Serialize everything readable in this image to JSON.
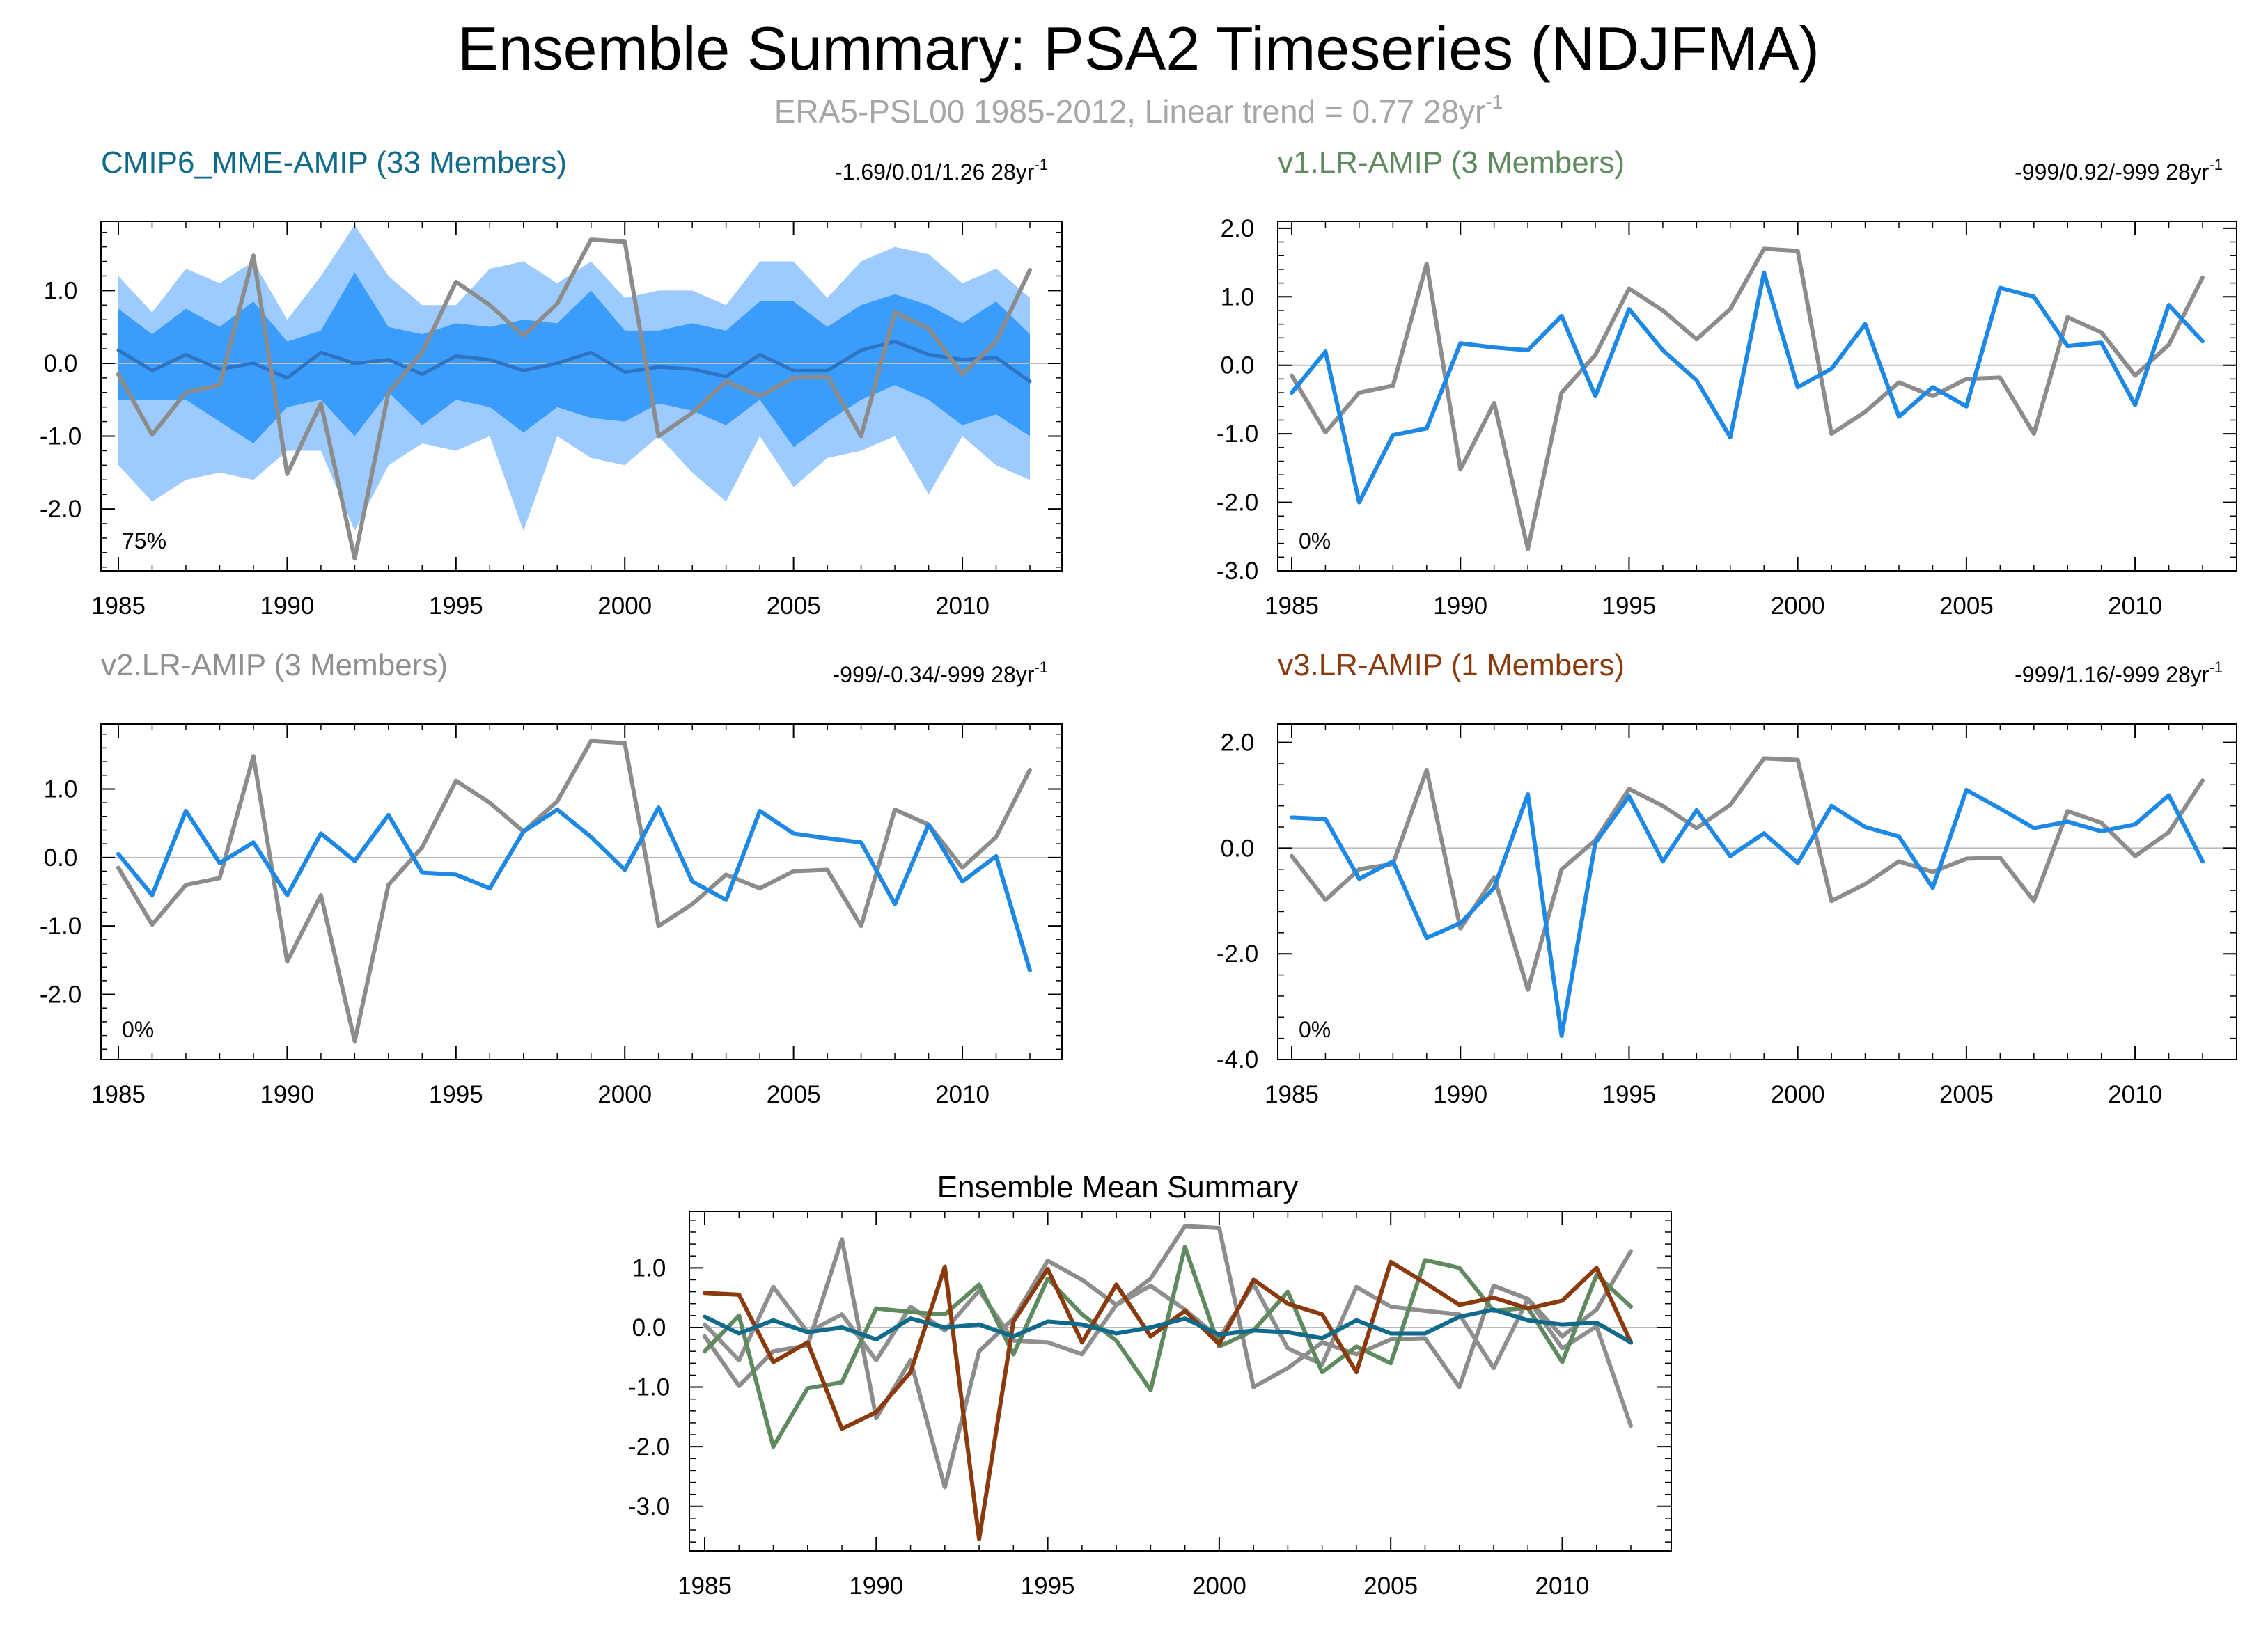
{
  "figure": {
    "title": "Ensemble Summary: PSA2 Timeseries (NDJFMA)",
    "subtitle": "ERA5-PSL00 1985-2012, Linear trend = 0.77 28yr",
    "subtitle_sup": "-1"
  },
  "colors": {
    "observed": "#8c8c8c",
    "model": "#1e88e5",
    "band_outer": "#9dcbff",
    "band_inner": "#3a9dfc",
    "mme_mean": "#2f74c3",
    "cmip6": "#0f6a8b",
    "v1": "#5f8a5f",
    "v2": "#8f8f8f",
    "v3": "#8b3a0e",
    "axis": "#000000",
    "zero_line": "#bdbdbd"
  },
  "chart_data": [
    {
      "id": "mme",
      "type": "area",
      "title": "CMIP6_MME-AMIP (33 Members)",
      "title_color": "#0f6a8b",
      "stat": "-1.69/0.01/1.26 28yr",
      "stat_sup": "-1",
      "annotation": "75%",
      "x": [
        1985,
        1986,
        1987,
        1988,
        1989,
        1990,
        1991,
        1992,
        1993,
        1994,
        1995,
        1996,
        1997,
        1998,
        1999,
        2000,
        2001,
        2002,
        2003,
        2004,
        2005,
        2006,
        2007,
        2008,
        2009,
        2010,
        2011,
        2012
      ],
      "xlim": [
        1985,
        2012
      ],
      "ylim": [
        -2.85,
        1.95
      ],
      "yticks": [
        1.0,
        0.0,
        -1.0,
        -2.0
      ],
      "ytick_labels": [
        "1.0",
        "0.0",
        "-1.0",
        "-2.0"
      ],
      "xticks": [
        1985,
        1990,
        1995,
        2000,
        2005,
        2010
      ],
      "xtick_labels": [
        "1985",
        "1990",
        "1995",
        "2000",
        "2005",
        "2010"
      ],
      "band_outer_upper": [
        1.2,
        0.7,
        1.3,
        1.1,
        1.4,
        0.6,
        1.2,
        1.9,
        1.2,
        0.8,
        0.8,
        1.3,
        1.4,
        1.1,
        1.4,
        0.9,
        1.0,
        1.0,
        0.8,
        1.4,
        1.4,
        0.9,
        1.4,
        1.6,
        1.5,
        1.1,
        1.3,
        0.9
      ],
      "band_outer_lower": [
        -1.4,
        -1.9,
        -1.6,
        -1.5,
        -1.6,
        -1.2,
        -1.2,
        -2.3,
        -1.4,
        -1.1,
        -1.2,
        -1.0,
        -2.3,
        -1.0,
        -1.3,
        -1.4,
        -1.0,
        -1.5,
        -1.9,
        -1.0,
        -1.7,
        -1.3,
        -1.2,
        -1.0,
        -1.8,
        -1.0,
        -1.4,
        -1.6
      ],
      "band_inner_upper": [
        0.75,
        0.4,
        0.75,
        0.5,
        0.85,
        0.3,
        0.45,
        1.25,
        0.5,
        0.4,
        0.55,
        0.5,
        0.6,
        0.55,
        1.0,
        0.45,
        0.45,
        0.55,
        0.45,
        0.85,
        0.85,
        0.5,
        0.8,
        0.95,
        0.8,
        0.55,
        0.85,
        0.4
      ],
      "band_inner_lower": [
        -0.5,
        -0.5,
        -0.5,
        -0.8,
        -1.1,
        -0.6,
        -0.5,
        -1.0,
        -0.4,
        -0.85,
        -0.5,
        -0.6,
        -0.95,
        -0.6,
        -0.75,
        -0.8,
        -0.55,
        -0.65,
        -0.85,
        -0.5,
        -1.15,
        -0.8,
        -0.5,
        -0.3,
        -0.5,
        -0.85,
        -0.7,
        -1.0
      ],
      "series": [
        {
          "name": "ensemble mean",
          "color_key": "mme_mean",
          "width": 5,
          "values": [
            0.18,
            -0.1,
            0.12,
            -0.08,
            0.0,
            -0.2,
            0.15,
            0.0,
            0.05,
            -0.15,
            0.1,
            0.05,
            -0.1,
            0.0,
            0.15,
            -0.12,
            -0.05,
            -0.08,
            -0.18,
            0.12,
            -0.1,
            -0.1,
            0.18,
            0.3,
            0.12,
            0.05,
            0.08,
            -0.25
          ]
        },
        {
          "name": "ERA5-PSL00",
          "color_key": "observed",
          "width": 6,
          "values": [
            -0.15,
            -0.98,
            -0.4,
            -0.3,
            1.48,
            -1.52,
            -0.55,
            -2.68,
            -0.4,
            0.15,
            1.12,
            0.8,
            0.38,
            0.82,
            1.7,
            1.67,
            -1.0,
            -0.68,
            -0.25,
            -0.45,
            -0.2,
            -0.18,
            -1.0,
            0.7,
            0.48,
            -0.15,
            0.3,
            1.28
          ]
        }
      ]
    },
    {
      "id": "v1",
      "type": "line",
      "title": "v1.LR-AMIP (3 Members)",
      "title_color": "#5f8a5f",
      "stat": "-999/0.92/-999 28yr",
      "stat_sup": "-1",
      "annotation": "0%",
      "x": [
        1985,
        1986,
        1987,
        1988,
        1989,
        1990,
        1991,
        1992,
        1993,
        1994,
        1995,
        1996,
        1997,
        1998,
        1999,
        2000,
        2001,
        2002,
        2003,
        2004,
        2005,
        2006,
        2007,
        2008,
        2009,
        2010,
        2011,
        2012
      ],
      "xlim": [
        1985,
        2012
      ],
      "ylim": [
        -3.0,
        2.1
      ],
      "yticks": [
        2.0,
        1.0,
        0.0,
        -1.0,
        -2.0,
        -3.0
      ],
      "ytick_labels": [
        "2.0",
        "1.0",
        "0.0",
        "-1.0",
        "-2.0",
        "-3.0"
      ],
      "xticks": [
        1985,
        1990,
        1995,
        2000,
        2005,
        2010
      ],
      "xtick_labels": [
        "1985",
        "1990",
        "1995",
        "2000",
        "2005",
        "2010"
      ],
      "series": [
        {
          "name": "ERA5-PSL00",
          "color_key": "observed",
          "width": 6,
          "values": [
            -0.15,
            -0.98,
            -0.4,
            -0.3,
            1.48,
            -1.52,
            -0.55,
            -2.68,
            -0.4,
            0.15,
            1.12,
            0.8,
            0.38,
            0.82,
            1.7,
            1.67,
            -1.0,
            -0.68,
            -0.25,
            -0.45,
            -0.2,
            -0.18,
            -1.0,
            0.7,
            0.48,
            -0.15,
            0.3,
            1.28
          ]
        },
        {
          "name": "ensemble mean",
          "color_key": "model",
          "width": 6,
          "values": [
            -0.4,
            0.2,
            -2.0,
            -1.02,
            -0.92,
            0.32,
            0.26,
            0.22,
            0.72,
            -0.45,
            0.82,
            0.22,
            -0.22,
            -1.05,
            1.35,
            -0.32,
            -0.05,
            0.6,
            -0.75,
            -0.32,
            -0.6,
            1.13,
            1.0,
            0.28,
            0.33,
            -0.58,
            0.88,
            0.35
          ]
        }
      ]
    },
    {
      "id": "v2",
      "type": "line",
      "title": "v2.LR-AMIP (3 Members)",
      "title_color": "#8f8f8f",
      "stat": "-999/-0.34/-999 28yr",
      "stat_sup": "-1",
      "annotation": "0%",
      "x": [
        1985,
        1986,
        1987,
        1988,
        1989,
        1990,
        1991,
        1992,
        1993,
        1994,
        1995,
        1996,
        1997,
        1998,
        1999,
        2000,
        2001,
        2002,
        2003,
        2004,
        2005,
        2006,
        2007,
        2008,
        2009,
        2010,
        2011,
        2012
      ],
      "xlim": [
        1985,
        2012
      ],
      "ylim": [
        -2.95,
        1.95
      ],
      "yticks": [
        1.0,
        0.0,
        -1.0,
        -2.0
      ],
      "ytick_labels": [
        "1.0",
        "0.0",
        "-1.0",
        "-2.0"
      ],
      "xticks": [
        1985,
        1990,
        1995,
        2000,
        2005,
        2010
      ],
      "xtick_labels": [
        "1985",
        "1990",
        "1995",
        "2000",
        "2005",
        "2010"
      ],
      "series": [
        {
          "name": "ERA5-PSL00",
          "color_key": "observed",
          "width": 6,
          "values": [
            -0.15,
            -0.98,
            -0.4,
            -0.3,
            1.48,
            -1.52,
            -0.55,
            -2.68,
            -0.4,
            0.15,
            1.12,
            0.8,
            0.38,
            0.82,
            1.7,
            1.67,
            -1.0,
            -0.68,
            -0.25,
            -0.45,
            -0.2,
            -0.18,
            -1.0,
            0.7,
            0.48,
            -0.15,
            0.3,
            1.28
          ]
        },
        {
          "name": "ensemble mean",
          "color_key": "model",
          "width": 6,
          "values": [
            0.05,
            -0.55,
            0.68,
            -0.08,
            0.22,
            -0.55,
            0.35,
            -0.05,
            0.62,
            -0.22,
            -0.25,
            -0.45,
            0.38,
            0.7,
            0.3,
            -0.18,
            0.73,
            -0.35,
            -0.62,
            0.68,
            0.35,
            0.28,
            0.22,
            -0.68,
            0.48,
            -0.35,
            0.02,
            -1.65
          ]
        }
      ]
    },
    {
      "id": "v3",
      "type": "line",
      "title": "v3.LR-AMIP (1 Members)",
      "title_color": "#8b3a0e",
      "stat": "-999/1.16/-999 28yr",
      "stat_sup": "-1",
      "annotation": "0%",
      "x": [
        1985,
        1986,
        1987,
        1988,
        1989,
        1990,
        1991,
        1992,
        1993,
        1994,
        1995,
        1996,
        1997,
        1998,
        1999,
        2000,
        2001,
        2002,
        2003,
        2004,
        2005,
        2006,
        2007,
        2008,
        2009,
        2010,
        2011,
        2012
      ],
      "xlim": [
        1985,
        2012
      ],
      "ylim": [
        -4.0,
        2.35
      ],
      "yticks": [
        2.0,
        0.0,
        -2.0,
        -4.0
      ],
      "ytick_labels": [
        "2.0",
        "0.0",
        "-2.0",
        "-4.0"
      ],
      "xticks": [
        1985,
        1990,
        1995,
        2000,
        2005,
        2010
      ],
      "xtick_labels": [
        "1985",
        "1990",
        "1995",
        "2000",
        "2005",
        "2010"
      ],
      "series": [
        {
          "name": "ERA5-PSL00",
          "color_key": "observed",
          "width": 6,
          "values": [
            -0.15,
            -0.98,
            -0.4,
            -0.3,
            1.48,
            -1.52,
            -0.55,
            -2.68,
            -0.4,
            0.15,
            1.12,
            0.8,
            0.38,
            0.82,
            1.7,
            1.67,
            -1.0,
            -0.68,
            -0.25,
            -0.45,
            -0.2,
            -0.18,
            -1.0,
            0.7,
            0.48,
            -0.15,
            0.3,
            1.28
          ]
        },
        {
          "name": "ensemble mean",
          "color_key": "model",
          "width": 6,
          "values": [
            0.58,
            0.55,
            -0.58,
            -0.25,
            -1.7,
            -1.42,
            -0.75,
            1.02,
            -3.55,
            0.1,
            0.98,
            -0.25,
            0.72,
            -0.15,
            0.28,
            -0.28,
            0.8,
            0.4,
            0.22,
            -0.75,
            1.1,
            0.75,
            0.38,
            0.5,
            0.32,
            0.45,
            1.0,
            -0.25
          ]
        }
      ]
    },
    {
      "id": "summary",
      "type": "line",
      "title": "Ensemble Mean Summary",
      "title_color": "#000000",
      "x": [
        1985,
        1986,
        1987,
        1988,
        1989,
        1990,
        1991,
        1992,
        1993,
        1994,
        1995,
        1996,
        1997,
        1998,
        1999,
        2000,
        2001,
        2002,
        2003,
        2004,
        2005,
        2006,
        2007,
        2008,
        2009,
        2010,
        2011,
        2012
      ],
      "xlim": [
        1985,
        2012
      ],
      "ylim": [
        -3.75,
        1.95
      ],
      "yticks": [
        1.0,
        0.0,
        -1.0,
        -2.0,
        -3.0
      ],
      "ytick_labels": [
        "1.0",
        "0.0",
        "-1.0",
        "-2.0",
        "-3.0"
      ],
      "xticks": [
        1985,
        1990,
        1995,
        2000,
        2005,
        2010
      ],
      "xtick_labels": [
        "1985",
        "1990",
        "1995",
        "2000",
        "2005",
        "2010"
      ],
      "series": [
        {
          "name": "ERA5-PSL00",
          "color_key": "observed",
          "width": 6,
          "values": [
            -0.15,
            -0.98,
            -0.4,
            -0.3,
            1.48,
            -1.52,
            -0.55,
            -2.68,
            -0.4,
            0.15,
            1.12,
            0.8,
            0.38,
            0.82,
            1.7,
            1.67,
            -1.0,
            -0.68,
            -0.25,
            -0.45,
            -0.2,
            -0.18,
            -1.0,
            0.7,
            0.48,
            -0.15,
            0.3,
            1.28
          ]
        },
        {
          "name": "v2.LR-AMIP",
          "color_key": "v2",
          "width": 6,
          "values": [
            0.05,
            -0.55,
            0.68,
            -0.08,
            0.22,
            -0.55,
            0.35,
            -0.05,
            0.62,
            -0.22,
            -0.25,
            -0.45,
            0.38,
            0.7,
            0.3,
            -0.18,
            0.73,
            -0.35,
            -0.62,
            0.68,
            0.35,
            0.28,
            0.22,
            -0.68,
            0.48,
            -0.35,
            0.02,
            -1.65
          ]
        },
        {
          "name": "v1.LR-AMIP",
          "color_key": "v1",
          "width": 6,
          "values": [
            -0.4,
            0.2,
            -2.0,
            -1.02,
            -0.92,
            0.32,
            0.26,
            0.22,
            0.72,
            -0.45,
            0.82,
            0.22,
            -0.22,
            -1.05,
            1.35,
            -0.32,
            -0.05,
            0.6,
            -0.75,
            -0.32,
            -0.6,
            1.13,
            1.0,
            0.28,
            0.33,
            -0.58,
            0.88,
            0.35
          ]
        },
        {
          "name": "v3.LR-AMIP",
          "color_key": "v3",
          "width": 6,
          "values": [
            0.58,
            0.55,
            -0.58,
            -0.25,
            -1.7,
            -1.42,
            -0.75,
            1.02,
            -3.55,
            0.1,
            0.98,
            -0.25,
            0.72,
            -0.15,
            0.28,
            -0.28,
            0.8,
            0.4,
            0.22,
            -0.75,
            1.1,
            0.75,
            0.38,
            0.5,
            0.32,
            0.45,
            1.0,
            -0.25
          ]
        },
        {
          "name": "CMIP6_MME-AMIP",
          "color_key": "cmip6",
          "width": 6,
          "values": [
            0.18,
            -0.1,
            0.12,
            -0.08,
            0.0,
            -0.2,
            0.15,
            0.0,
            0.05,
            -0.15,
            0.1,
            0.05,
            -0.1,
            0.0,
            0.15,
            -0.12,
            -0.05,
            -0.08,
            -0.18,
            0.12,
            -0.1,
            -0.1,
            0.18,
            0.3,
            0.12,
            0.05,
            0.08,
            -0.25
          ]
        }
      ]
    }
  ]
}
